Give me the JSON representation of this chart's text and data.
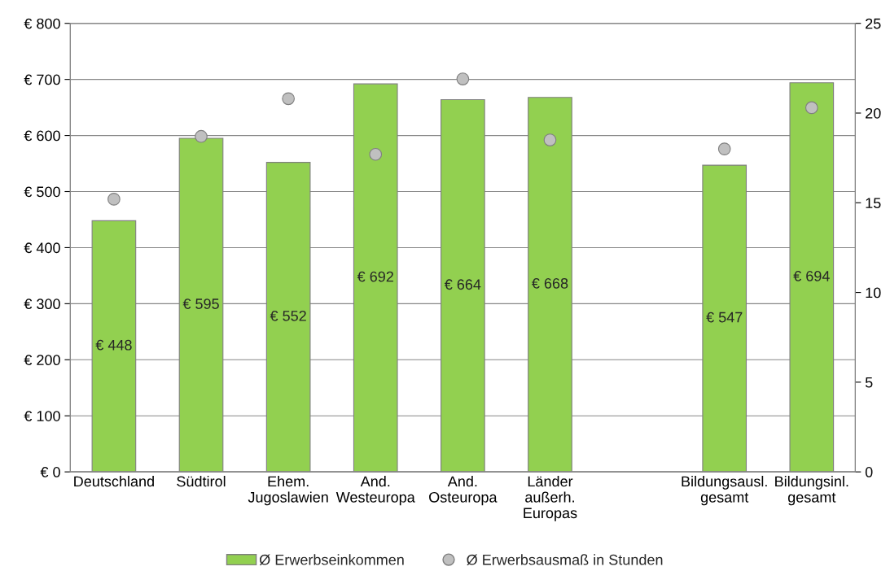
{
  "chart_data": {
    "type": "bar",
    "categories": [
      "Deutschland",
      "Südtirol",
      "Ehem.\nJugoslawien",
      "And.\nWesteuropa",
      "And.\nOsteuropa",
      "Länder\naußerh.\nEuropas",
      null,
      "Bildungsausl.\ngesamt",
      "Bildungsinl.\ngesamt"
    ],
    "series": [
      {
        "name": "Ø Erwerbseinkommen",
        "color": "#92d050",
        "values": [
          448,
          595,
          552,
          692,
          664,
          668,
          null,
          547,
          694
        ],
        "value_labels": [
          "€ 448",
          "€ 595",
          "€ 552",
          "€ 692",
          "€ 664",
          "€ 668",
          null,
          "€ 547",
          "€ 694"
        ]
      },
      {
        "name": "Ø Erwerbsausmaß in Stunden",
        "type": "scatter",
        "axis": "y2",
        "color": "#c0c0c0",
        "marker": "circle",
        "values": [
          15.2,
          18.7,
          20.8,
          17.7,
          21.9,
          18.5,
          null,
          18.0,
          20.3
        ]
      }
    ],
    "ylim": [
      0,
      800
    ],
    "yticks": [
      {
        "value": 0,
        "label": "€ 0"
      },
      {
        "value": 100,
        "label": "€ 100"
      },
      {
        "value": 200,
        "label": "€ 200"
      },
      {
        "value": 300,
        "label": "€ 300"
      },
      {
        "value": 400,
        "label": "€ 400"
      },
      {
        "value": 500,
        "label": "€ 500"
      },
      {
        "value": 600,
        "label": "€ 600"
      },
      {
        "value": 700,
        "label": "€ 700"
      },
      {
        "value": 800,
        "label": "€ 800"
      }
    ],
    "y2lim": [
      0,
      25
    ],
    "y2ticks": [
      0,
      5,
      10,
      15,
      20,
      25
    ],
    "grid": "y",
    "legend": "bottom"
  }
}
